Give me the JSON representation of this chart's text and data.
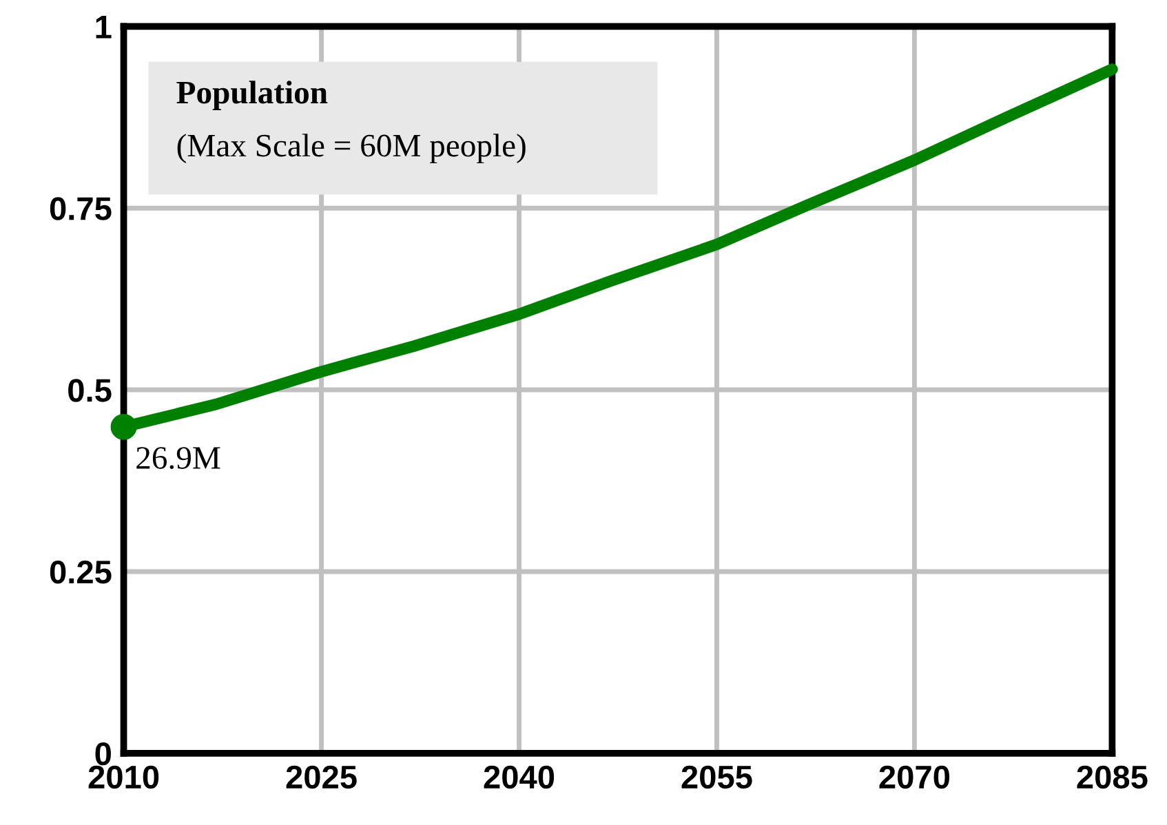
{
  "chart_data": {
    "type": "line",
    "title": "Population",
    "subtitle": "(Max Scale = 60M people)",
    "x": [
      2010,
      2017,
      2025,
      2032,
      2040,
      2047,
      2055,
      2062,
      2070,
      2077,
      2085
    ],
    "series": [
      {
        "color": "#008000",
        "values": [
          0.449,
          0.48,
          0.525,
          0.56,
          0.604,
          0.65,
          0.7,
          0.755,
          0.816,
          0.875,
          0.941
        ]
      },
      {
        "type": "scatter",
        "color": "#008000",
        "x": [
          2010
        ],
        "values": [
          0.449
        ]
      }
    ],
    "annotations": [
      {
        "text": "26.9M",
        "x": 2010,
        "y": 0.449
      }
    ],
    "xlim": [
      2010,
      2085
    ],
    "xticks": [
      2010,
      2025,
      2040,
      2055,
      2070,
      2085
    ],
    "ylim": [
      0,
      1
    ],
    "yticks": [
      0,
      0.25,
      0.5,
      0.75,
      1
    ],
    "grid": true,
    "line_style": "solid"
  }
}
